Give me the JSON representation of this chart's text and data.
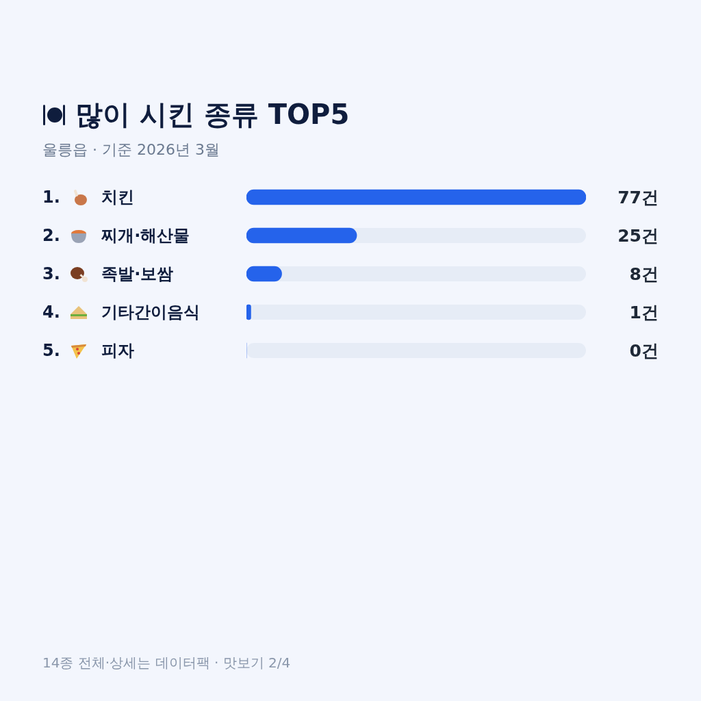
{
  "chart_data": {
    "type": "bar",
    "orientation": "horizontal",
    "title": "많이 시킨 종류 TOP5",
    "subtitle": "울릉읍 · 기준 2026년 3월",
    "categories": [
      "1. 치킨",
      "2. 찌개·해산물",
      "3. 족발·보쌈",
      "4. 기타간이음식",
      "5. 피자"
    ],
    "values": [
      77,
      25,
      8,
      1,
      0
    ],
    "value_labels": [
      "77건",
      "25건",
      "8건",
      "1건",
      "0건"
    ],
    "color": "#2563eb",
    "xlim": [
      0,
      77
    ],
    "tick_labels": "y",
    "annotations": [
      "14종 전체·상세는 데이터팩 · 맛보기 2/4"
    ]
  }
}
